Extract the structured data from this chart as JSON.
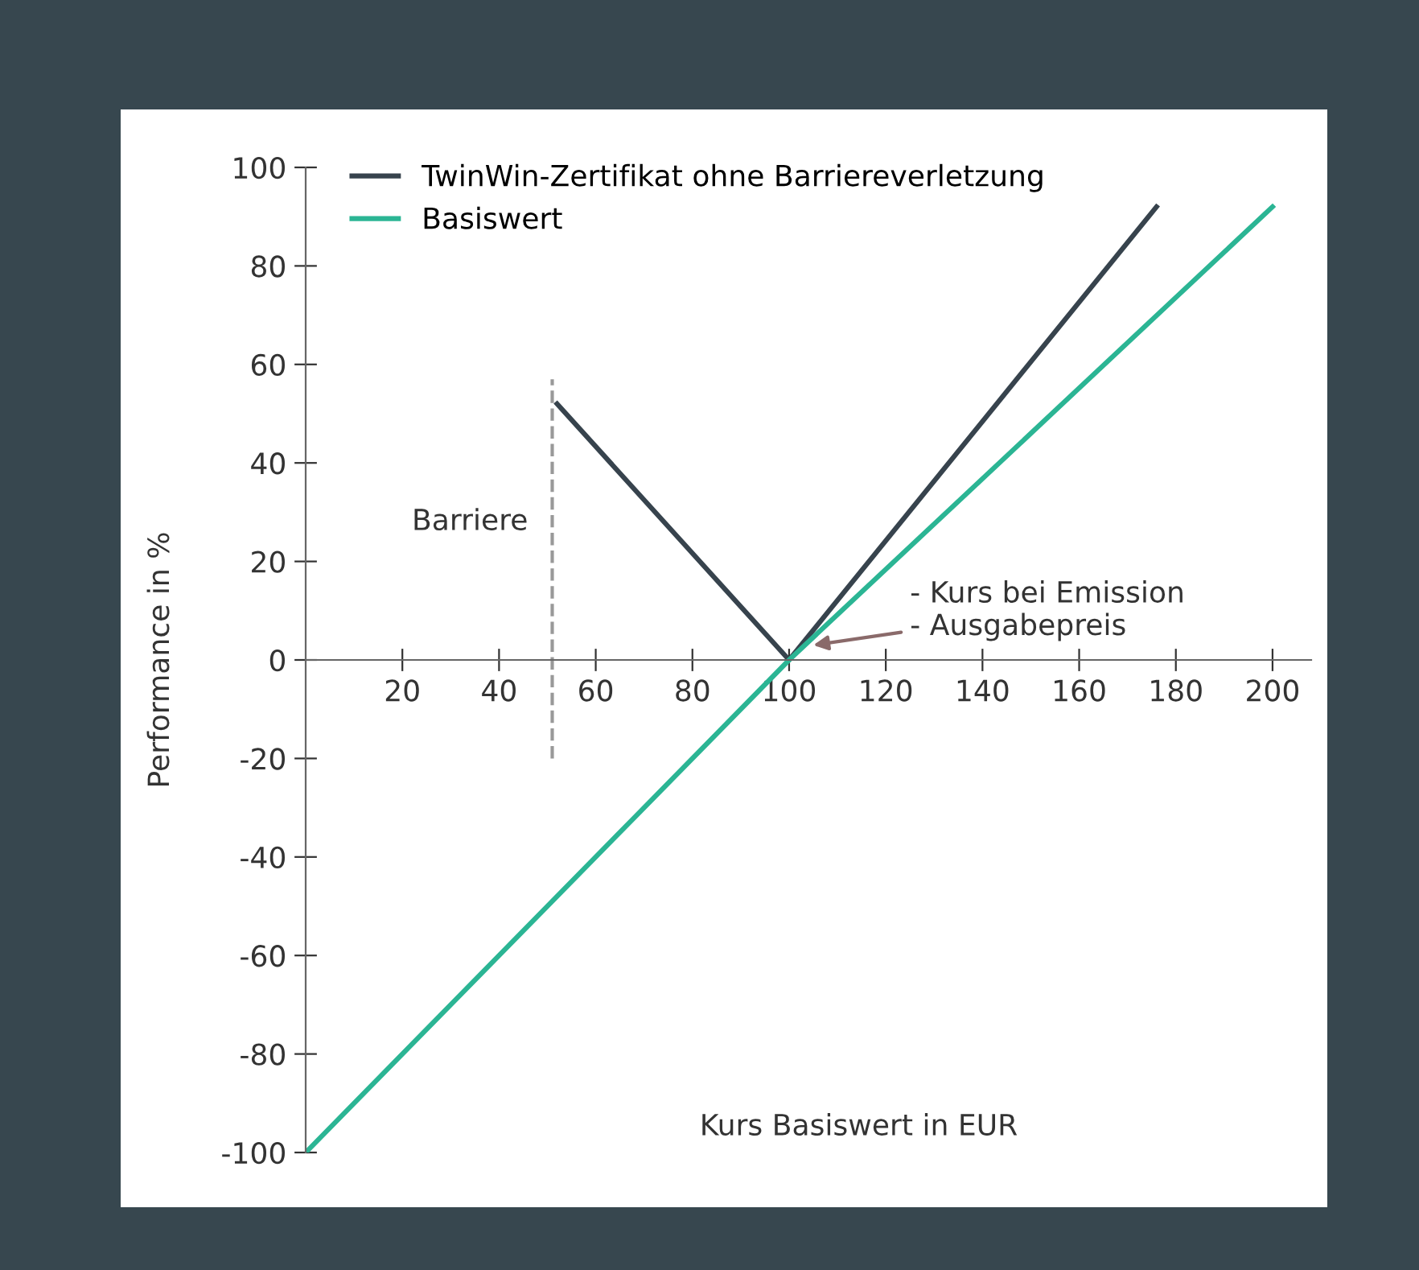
{
  "chart_data": {
    "type": "line",
    "xlabel": "Kurs Basiswert in EUR",
    "ylabel": "Performance in %",
    "series": [
      {
        "name": "TwinWin-Zertifikat ohne Barriereverletzung",
        "color": "#37434d",
        "x": [
          52,
          100,
          176
        ],
        "values": [
          52,
          0,
          92
        ]
      },
      {
        "name": "Basiswert",
        "color": "#2bb594",
        "x": [
          0,
          100,
          200
        ],
        "values": [
          -100,
          0,
          92
        ]
      }
    ],
    "xlim": [
      0,
      208
    ],
    "ylim": [
      -100,
      100
    ],
    "xticks": [
      20,
      40,
      60,
      80,
      100,
      120,
      140,
      160,
      180,
      200
    ],
    "yticks": [
      -100,
      -80,
      -60,
      -40,
      -20,
      0,
      20,
      40,
      60,
      80,
      100
    ],
    "ref_lines": [
      {
        "axis": "x",
        "value": 51,
        "label": "Barriere",
        "color": "#999999",
        "line_style": "dashed"
      }
    ],
    "annotations": [
      {
        "text": "- Kurs bei Emission\n- Ausgabepreis",
        "x": 105,
        "y": 3
      }
    ],
    "grid": false,
    "legend": "top left",
    "marker": "none",
    "line_style": "solid"
  }
}
